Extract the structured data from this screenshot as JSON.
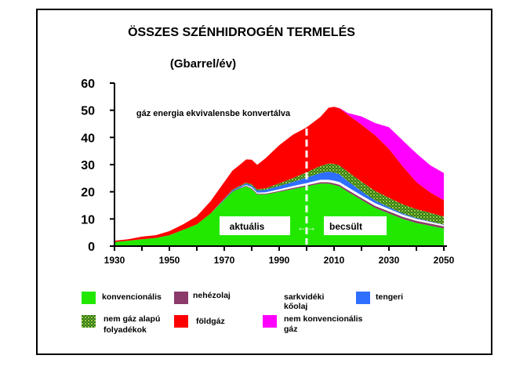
{
  "chart_data": {
    "type": "area",
    "stacked": true,
    "title": "ÖSSZES SZÉNHIDROGÉN TERMELÉS",
    "ylabel": "(Gbarrel/év)",
    "xlabel": "",
    "xlim": [
      1930,
      2050
    ],
    "ylim": [
      0,
      60
    ],
    "grid": false,
    "legend_position": "bottom",
    "x_ticks": [
      "1930",
      "1950",
      "1970",
      "1990",
      "2010",
      "2030",
      "2050"
    ],
    "y_ticks": [
      "0",
      "10",
      "20",
      "30",
      "40",
      "50",
      "60"
    ],
    "x_ticks_values": [
      1930,
      1950,
      1970,
      1990,
      2010,
      2030,
      2050
    ],
    "y_ticks_values": [
      0,
      10,
      20,
      30,
      40,
      50,
      60
    ],
    "annotations": {
      "note": "gáz energia ekvivalensbe konvertálva",
      "actual": "aktuális",
      "estimated": "becsült",
      "arrow": "←→",
      "divider_year": 2000
    },
    "x": [
      1930,
      1935,
      1940,
      1945,
      1950,
      1955,
      1960,
      1965,
      1970,
      1973,
      1975,
      1978,
      1980,
      1982,
      1985,
      1990,
      1995,
      2000,
      2005,
      2008,
      2010,
      2012,
      2015,
      2020,
      2025,
      2030,
      2035,
      2040,
      2045,
      2050
    ],
    "series": [
      {
        "name": "konvencionális",
        "color": "#22e800",
        "values": [
          1.5,
          2,
          2.5,
          3,
          4,
          6,
          8,
          12,
          17,
          20,
          21,
          22,
          21,
          19,
          19,
          20,
          21,
          22,
          23,
          23,
          22.5,
          22,
          20,
          17,
          14,
          12,
          10,
          8.5,
          7.5,
          6.5
        ]
      },
      {
        "name": "nehézolaj",
        "color": "#8c3a6a",
        "values": [
          0,
          0,
          0,
          0,
          0,
          0,
          0,
          0,
          0.2,
          0.2,
          0.2,
          0.2,
          0.3,
          0.3,
          0.3,
          0.3,
          0.4,
          0.4,
          0.5,
          0.5,
          0.6,
          0.6,
          0.7,
          0.7,
          0.8,
          0.8,
          0.8,
          0.8,
          0.8,
          0.8
        ]
      },
      {
        "name": "sarkvidéki kőolaj",
        "color": "#ffffff",
        "values": [
          0,
          0,
          0,
          0,
          0,
          0,
          0,
          0,
          0,
          0,
          0,
          0.3,
          0.4,
          0.4,
          0.5,
          0.6,
          0.7,
          0.8,
          0.9,
          0.9,
          1,
          1,
          1,
          1,
          1,
          0.9,
          0.8,
          0.7,
          0.6,
          0.5
        ]
      },
      {
        "name": "tengeri",
        "color": "#2f6fff",
        "values": [
          0,
          0,
          0,
          0,
          0,
          0,
          0,
          0,
          0.2,
          0.3,
          0.4,
          0.5,
          0.6,
          0.7,
          0.9,
          1.2,
          1.5,
          2,
          2.5,
          3,
          3,
          2.8,
          2.2,
          1.5,
          1,
          0.6,
          0.4,
          0.3,
          0.2,
          0.1
        ]
      },
      {
        "name": "nem gáz alapú folyadékok",
        "color": "#7fa020",
        "values": [
          0,
          0,
          0,
          0,
          0,
          0,
          0,
          0,
          0.2,
          0.3,
          0.3,
          0.4,
          0.5,
          0.5,
          0.6,
          1,
          1.4,
          2,
          2.6,
          3,
          3.2,
          3.3,
          3.5,
          3.5,
          3.5,
          3.5,
          3.4,
          3.3,
          3.2,
          3
        ]
      },
      {
        "name": "földgáz",
        "color": "#ff0000",
        "values": [
          0.5,
          0.5,
          1,
          1,
          1.5,
          2,
          3,
          4.5,
          6,
          7,
          7.5,
          8.5,
          9,
          9,
          11,
          14,
          16,
          16.5,
          18,
          20.5,
          21,
          21,
          21,
          21,
          20.5,
          18,
          14,
          10,
          7.5,
          6
        ]
      },
      {
        "name": "nem konvencionális gáz",
        "color": "#ff00ff",
        "values": [
          0,
          0,
          0,
          0,
          0,
          0,
          0,
          0,
          0,
          0,
          0,
          0,
          0,
          0,
          0,
          0,
          0,
          0,
          0,
          0,
          0,
          0.1,
          0.6,
          3,
          4.5,
          8,
          9.5,
          10.5,
          10,
          10
        ]
      }
    ],
    "legend": [
      {
        "label": "konvencionális",
        "color": "#22e800",
        "pattern": "solid"
      },
      {
        "label": "nehézolaj",
        "color": "#8c3a6a",
        "pattern": "solid"
      },
      {
        "label": "sarkvidéki kőolaj",
        "color": "#ffffff",
        "pattern": "none"
      },
      {
        "label": "tengeri",
        "color": "#2f6fff",
        "pattern": "solid"
      },
      {
        "label": "nem gáz alapú folyadékok",
        "color": "#7fa020",
        "pattern": "dots"
      },
      {
        "label": "földgáz",
        "color": "#ff0000",
        "pattern": "solid"
      },
      {
        "label": "nem konvencionális gáz",
        "color": "#ff00ff",
        "pattern": "solid"
      }
    ]
  }
}
